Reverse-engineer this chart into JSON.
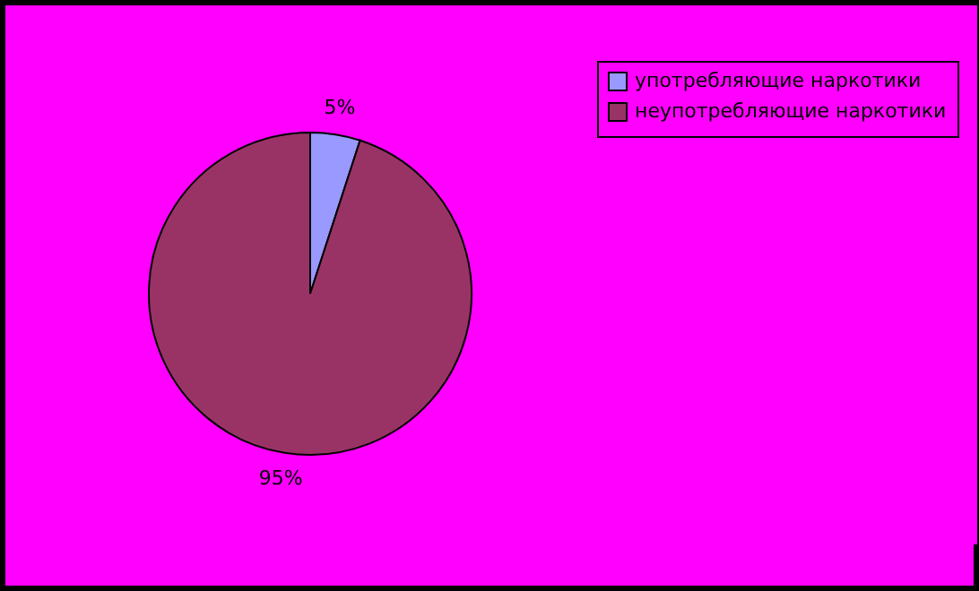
{
  "chart_data": {
    "type": "pie",
    "categories": [
      "употребляющие наркотики",
      "неупотребляющие наркотики"
    ],
    "values": [
      5,
      95
    ],
    "colors": [
      "#9999ff",
      "#993366"
    ],
    "value_labels": [
      "5%",
      "95%"
    ],
    "legend": "right"
  }
}
